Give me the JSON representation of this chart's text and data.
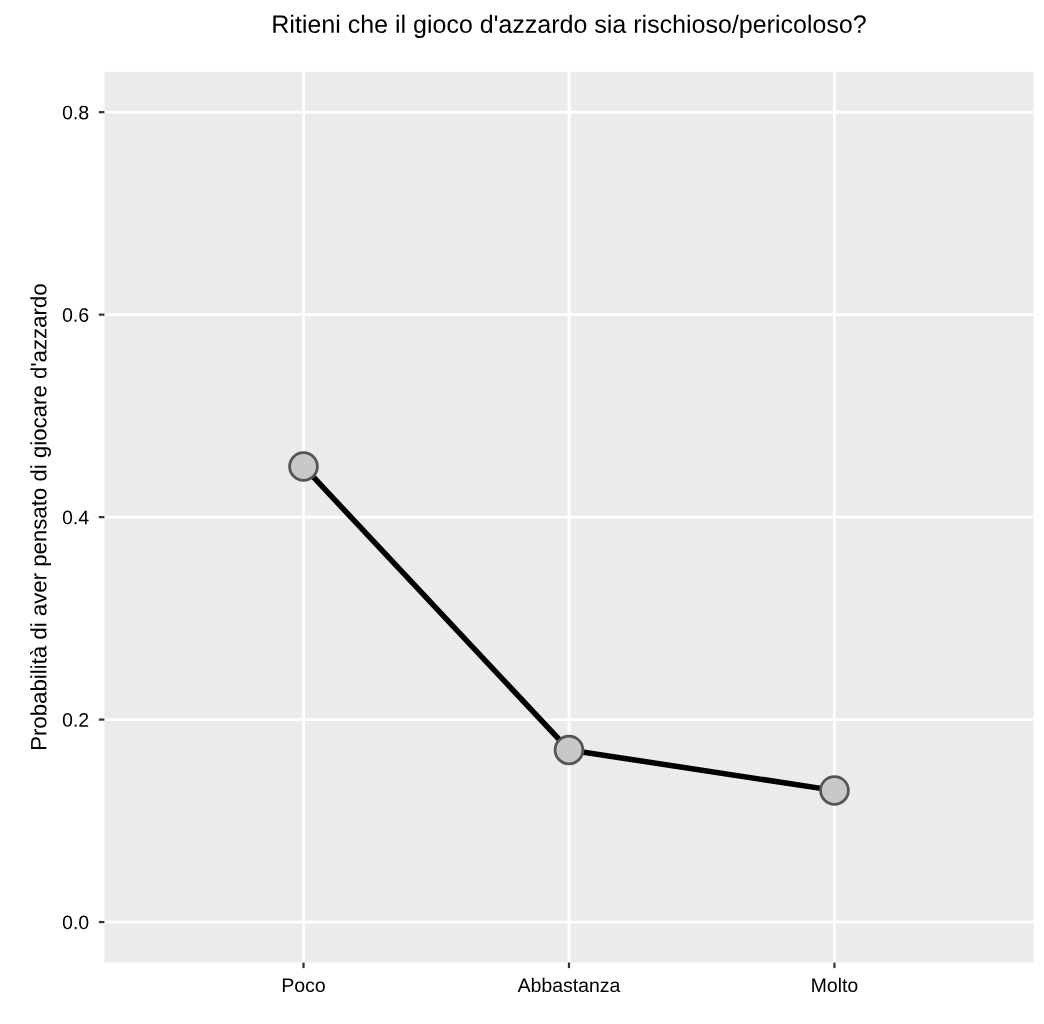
{
  "chart_data": {
    "type": "line",
    "title": "Ritieni che il gioco d'azzardo sia rischioso/pericoloso?",
    "ylabel": "Probabilità di aver pensato di giocare d'azzardo",
    "categories": [
      "Poco",
      "Abbastanza",
      "Molto"
    ],
    "series": [
      {
        "color": "#000000",
        "values": [
          0.45,
          0.17,
          0.13
        ]
      }
    ],
    "marker": "circle",
    "line_style": "solid",
    "ylim": [
      -0.04,
      0.84
    ],
    "yticks": [
      {
        "value": 0,
        "label": "0.0"
      },
      0.2,
      0.4,
      0.6,
      0.8
    ],
    "grid": true,
    "legend": false
  }
}
